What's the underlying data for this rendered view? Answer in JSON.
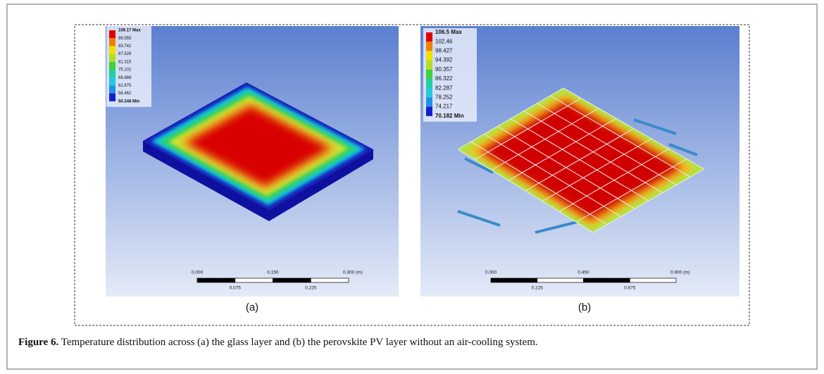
{
  "panels": [
    {
      "label": "(a)",
      "legend": [
        "106.17 Max",
        "99.955",
        "93.742",
        "87.528",
        "81.315",
        "75.102",
        "68.888",
        "62.675",
        "56.462",
        "50.248 Min"
      ],
      "scale": {
        "top": [
          "0.000",
          "0.150",
          "0.300 (m)"
        ],
        "bottom": [
          "0.075",
          "0.225"
        ]
      }
    },
    {
      "label": "(b)",
      "legend": [
        "106.5 Max",
        "102.46",
        "98.427",
        "94.392",
        "90.357",
        "86.322",
        "82.287",
        "78.252",
        "74.217",
        "70.182 Min"
      ],
      "scale": {
        "top": [
          "0.000",
          "0.450",
          "0.900 (m)"
        ],
        "bottom": [
          "0.225",
          "0.675"
        ]
      }
    }
  ],
  "caption": {
    "label": "Figure 6.",
    "text": "Temperature distribution across (a) the glass layer and (b) the perovskite PV layer without an air-cooling system."
  }
}
